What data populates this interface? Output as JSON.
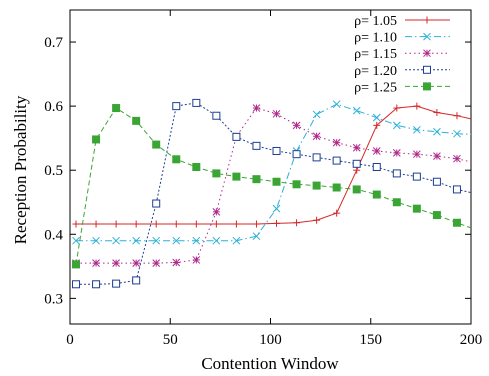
{
  "chart_data": {
    "type": "line",
    "title": "",
    "xlabel": "Contention Window",
    "ylabel": "Reception Probability",
    "xlim": [
      0,
      200
    ],
    "ylim": [
      0.26,
      0.75
    ],
    "xticks": [
      0,
      50,
      100,
      150,
      200
    ],
    "yticks": [
      0.3,
      0.4,
      0.5,
      0.6,
      0.7
    ],
    "grid": false,
    "legend_position": "top-right",
    "series": [
      {
        "name": "ρ= 1.05",
        "color": "#d62728",
        "marker": "plus",
        "dash": "solid",
        "x": [
          3,
          13,
          23,
          33,
          43,
          53,
          63,
          73,
          83,
          93,
          103,
          113,
          123,
          133,
          143,
          153,
          163,
          173,
          183,
          193,
          200
        ],
        "y": [
          0.416,
          0.416,
          0.416,
          0.416,
          0.416,
          0.416,
          0.416,
          0.416,
          0.416,
          0.416,
          0.417,
          0.418,
          0.422,
          0.433,
          0.5,
          0.57,
          0.597,
          0.6,
          0.59,
          0.585,
          0.58
        ]
      },
      {
        "name": "ρ= 1.10",
        "color": "#2ab0d8",
        "marker": "x",
        "dash": "dashdot",
        "x": [
          3,
          13,
          23,
          33,
          43,
          53,
          63,
          73,
          83,
          93,
          103,
          113,
          123,
          133,
          143,
          153,
          163,
          173,
          183,
          193,
          200
        ],
        "y": [
          0.39,
          0.39,
          0.39,
          0.39,
          0.39,
          0.39,
          0.39,
          0.39,
          0.39,
          0.397,
          0.44,
          0.53,
          0.587,
          0.603,
          0.593,
          0.582,
          0.57,
          0.563,
          0.56,
          0.557,
          0.556
        ]
      },
      {
        "name": "ρ= 1.15",
        "color": "#b0278a",
        "marker": "star",
        "dash": "dotted",
        "x": [
          3,
          13,
          23,
          33,
          43,
          53,
          63,
          73,
          83,
          93,
          103,
          113,
          123,
          133,
          143,
          153,
          163,
          173,
          183,
          193,
          200
        ],
        "y": [
          0.355,
          0.355,
          0.355,
          0.355,
          0.355,
          0.356,
          0.36,
          0.435,
          0.553,
          0.597,
          0.588,
          0.57,
          0.553,
          0.543,
          0.535,
          0.53,
          0.527,
          0.525,
          0.522,
          0.518,
          0.513
        ]
      },
      {
        "name": "ρ= 1.20",
        "color": "#1c3f94",
        "marker": "square",
        "dash": "densedot",
        "x": [
          3,
          13,
          23,
          33,
          43,
          53,
          63,
          73,
          83,
          93,
          103,
          113,
          123,
          133,
          143,
          153,
          163,
          173,
          183,
          193,
          200
        ],
        "y": [
          0.322,
          0.322,
          0.323,
          0.328,
          0.448,
          0.6,
          0.605,
          0.585,
          0.552,
          0.538,
          0.53,
          0.525,
          0.52,
          0.515,
          0.51,
          0.505,
          0.495,
          0.49,
          0.482,
          0.47,
          0.465
        ]
      },
      {
        "name": "ρ= 1.25",
        "color": "#3aa535",
        "marker": "filledsquare",
        "dash": "dashed",
        "x": [
          3,
          13,
          23,
          33,
          43,
          53,
          63,
          73,
          83,
          93,
          103,
          113,
          123,
          133,
          143,
          153,
          163,
          173,
          183,
          193,
          200
        ],
        "y": [
          0.353,
          0.548,
          0.597,
          0.577,
          0.54,
          0.517,
          0.505,
          0.495,
          0.49,
          0.486,
          0.482,
          0.478,
          0.476,
          0.473,
          0.47,
          0.462,
          0.45,
          0.44,
          0.43,
          0.418,
          0.41
        ]
      }
    ]
  }
}
